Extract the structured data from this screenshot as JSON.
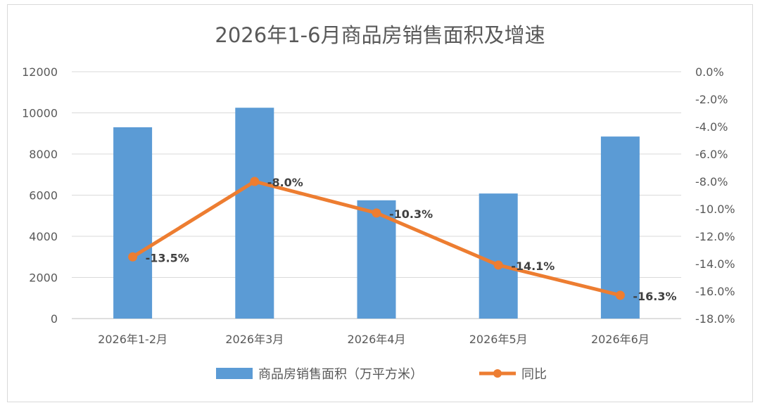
{
  "chart_data": {
    "type": "bar+line",
    "title": "2026年1-6月商品房销售面积及增速",
    "categories": [
      "2026年1-2月",
      "2026年3月",
      "2026年4月",
      "2026年5月",
      "2026年6月"
    ],
    "series": [
      {
        "name": "商品房销售面积（万平方米）",
        "type": "bar",
        "axis": "left",
        "color": "#5b9bd5",
        "values": [
          9300,
          10250,
          5750,
          6080,
          8850
        ]
      },
      {
        "name": "同比",
        "type": "line",
        "axis": "right",
        "color": "#ed7d31",
        "values": [
          -13.5,
          -8.0,
          -10.3,
          -14.1,
          -16.3
        ],
        "labels": [
          "-13.5%",
          "-8.0%",
          "-10.3%",
          "-14.1%",
          "-16.3%"
        ]
      }
    ],
    "y_left": {
      "min": 0,
      "max": 12000,
      "ticks": [
        "12000",
        "10000",
        "8000",
        "6000",
        "4000",
        "2000",
        "0"
      ],
      "tick_values": [
        12000,
        10000,
        8000,
        6000,
        4000,
        2000,
        0
      ]
    },
    "y_right": {
      "min": -18,
      "max": 0,
      "ticks": [
        "0.0%",
        "-2.0%",
        "-4.0%",
        "-6.0%",
        "-8.0%",
        "-10.0%",
        "-12.0%",
        "-14.0%",
        "-16.0%",
        "-18.0%"
      ],
      "tick_values": [
        0,
        -2,
        -4,
        -6,
        -8,
        -10,
        -12,
        -14,
        -16,
        -18
      ]
    },
    "grid": true,
    "legend_position": "bottom"
  }
}
